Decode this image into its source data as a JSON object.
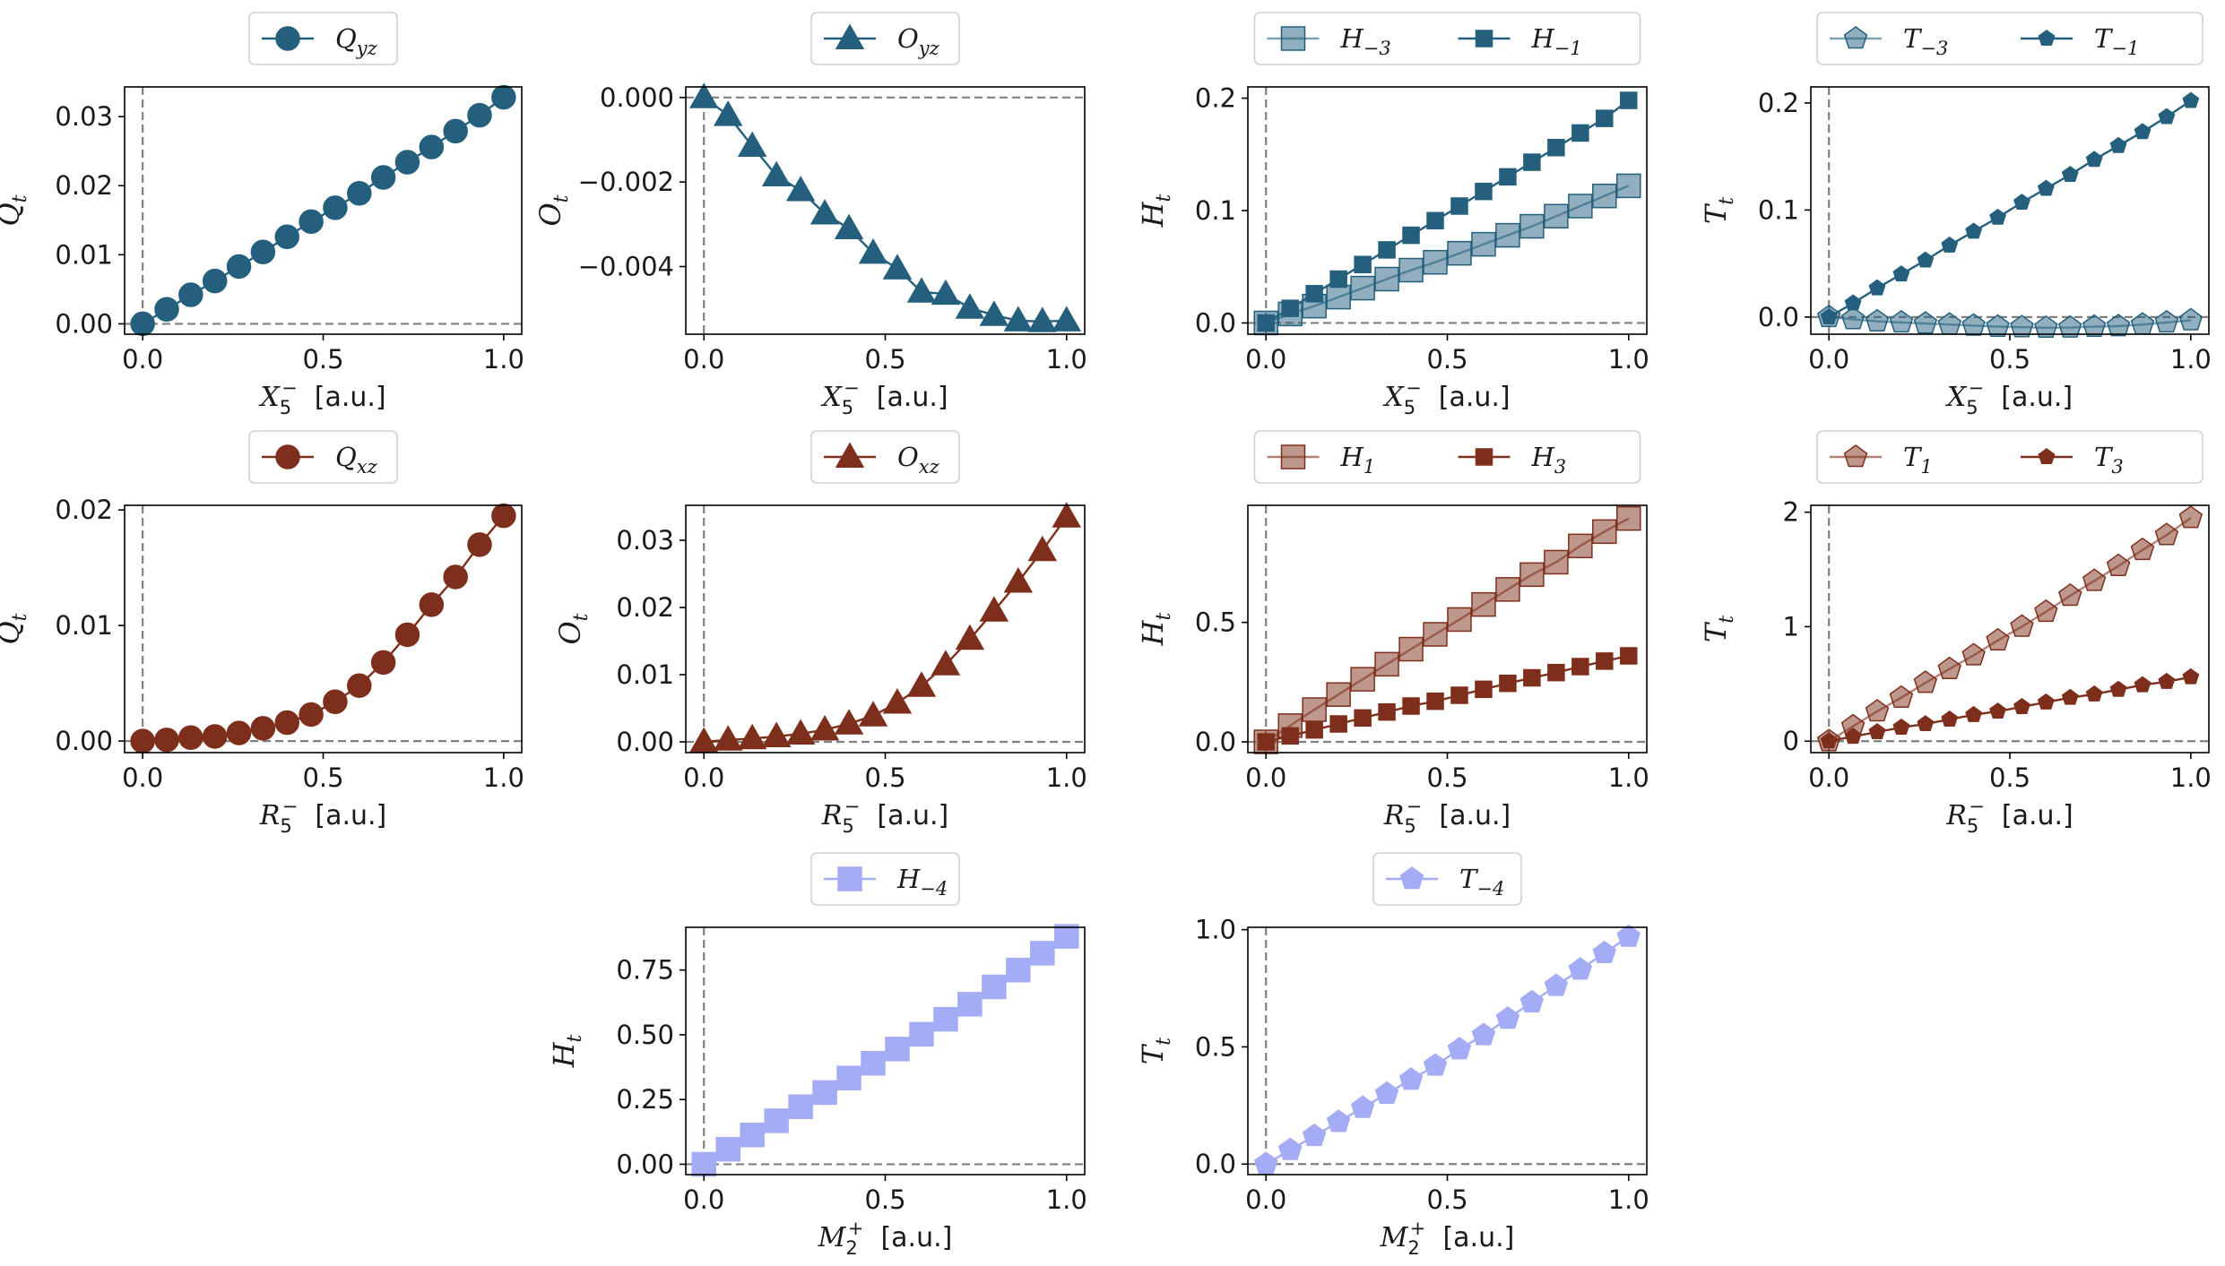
{
  "colors": {
    "blue": "#24607e",
    "lightblue": "#8badbd",
    "brown": "#7e2f1b",
    "lightbrown": "#b9877b",
    "periwinkle": "#a3acf4",
    "guide": "#808080"
  },
  "chart_data": [
    {
      "id": "p11",
      "type": "line",
      "xlabel_main": "X",
      "xlabel_sub": "5",
      "xlabel_sup": "−",
      "xlabel_unit": "[a.u.]",
      "ylabel_main": "Q",
      "ylabel_sub": "t",
      "xlim": [
        -0.05,
        1.05
      ],
      "ylim": [
        -0.0015,
        0.0343
      ],
      "xticks": [
        0.0,
        0.5,
        1.0
      ],
      "xticklabels": [
        "0.0",
        "0.5",
        "1.0"
      ],
      "yticks": [
        0.0,
        0.01,
        0.02,
        0.03
      ],
      "yticklabels": [
        "0.00",
        "0.01",
        "0.02",
        "0.03"
      ],
      "series": [
        {
          "name": "Q_yz",
          "legend_main": "Q",
          "legend_sub": "yz",
          "color": "#24607e",
          "marker": "circle",
          "size": 13,
          "alpha": 1,
          "x": [
            0,
            0.0667,
            0.1333,
            0.2,
            0.2667,
            0.3333,
            0.4,
            0.4667,
            0.5333,
            0.6,
            0.6667,
            0.7333,
            0.8,
            0.8667,
            0.9333,
            1.0
          ],
          "values": [
            0.0,
            0.0021,
            0.0042,
            0.0062,
            0.0083,
            0.0104,
            0.0126,
            0.0148,
            0.0168,
            0.0189,
            0.0212,
            0.0234,
            0.0256,
            0.0279,
            0.0302,
            0.0328
          ]
        }
      ]
    },
    {
      "id": "p12",
      "type": "line",
      "xlabel_main": "X",
      "xlabel_sub": "5",
      "xlabel_sup": "−",
      "xlabel_unit": "[a.u.]",
      "ylabel_main": "O",
      "ylabel_sub": "t",
      "xlim": [
        -0.05,
        1.05
      ],
      "ylim": [
        -0.0056,
        0.00025
      ],
      "xticks": [
        0.0,
        0.5,
        1.0
      ],
      "xticklabels": [
        "0.0",
        "0.5",
        "1.0"
      ],
      "yticks": [
        0.0,
        -0.002,
        -0.004
      ],
      "yticklabels": [
        "0.000",
        "−0.002",
        "−0.004"
      ],
      "series": [
        {
          "name": "O_yz",
          "legend_main": "O",
          "legend_sub": "yz",
          "color": "#24607e",
          "marker": "triangle",
          "size": 13,
          "alpha": 1,
          "x": [
            0,
            0.0667,
            0.1333,
            0.2,
            0.2667,
            0.3333,
            0.4,
            0.4667,
            0.5333,
            0.6,
            0.6667,
            0.7333,
            0.8,
            0.8667,
            0.9333,
            1.0
          ],
          "values": [
            0.0,
            -0.00042,
            -0.00115,
            -0.00185,
            -0.0022,
            -0.00275,
            -0.0031,
            -0.00368,
            -0.00405,
            -0.0046,
            -0.00465,
            -0.00498,
            -0.00515,
            -0.00528,
            -0.0053,
            -0.00528
          ]
        }
      ]
    },
    {
      "id": "p13",
      "type": "line",
      "xlabel_main": "X",
      "xlabel_sub": "5",
      "xlabel_sup": "−",
      "xlabel_unit": "[a.u.]",
      "ylabel_main": "H",
      "ylabel_sub": "t",
      "xlim": [
        -0.05,
        1.05
      ],
      "ylim": [
        -0.01,
        0.21
      ],
      "xticks": [
        0.0,
        0.5,
        1.0
      ],
      "xticklabels": [
        "0.0",
        "0.5",
        "1.0"
      ],
      "yticks": [
        0.0,
        0.1,
        0.2
      ],
      "yticklabels": [
        "0.0",
        "0.1",
        "0.2"
      ],
      "series": [
        {
          "name": "H_-3",
          "legend_main": "H",
          "legend_sub": "−3",
          "color": "#24607e",
          "marker": "square",
          "size": 13,
          "alpha": 0.5,
          "x": [
            0,
            0.0667,
            0.1333,
            0.2,
            0.2667,
            0.3333,
            0.4,
            0.4667,
            0.5333,
            0.6,
            0.6667,
            0.7333,
            0.8,
            0.8667,
            0.9333,
            1.0
          ],
          "values": [
            0.0,
            0.008,
            0.015,
            0.023,
            0.031,
            0.039,
            0.047,
            0.054,
            0.062,
            0.07,
            0.078,
            0.086,
            0.095,
            0.104,
            0.113,
            0.122
          ]
        },
        {
          "name": "H_-1",
          "legend_main": "H",
          "legend_sub": "−1",
          "color": "#24607e",
          "marker": "square",
          "size": 9,
          "alpha": 1,
          "x": [
            0,
            0.0667,
            0.1333,
            0.2,
            0.2667,
            0.3333,
            0.4,
            0.4667,
            0.5333,
            0.6,
            0.6667,
            0.7333,
            0.8,
            0.8667,
            0.9333,
            1.0
          ],
          "values": [
            0.0,
            0.013,
            0.026,
            0.039,
            0.052,
            0.065,
            0.078,
            0.091,
            0.104,
            0.117,
            0.13,
            0.143,
            0.156,
            0.169,
            0.182,
            0.198
          ]
        }
      ]
    },
    {
      "id": "p14",
      "type": "line",
      "xlabel_main": "X",
      "xlabel_sub": "5",
      "xlabel_sup": "−",
      "xlabel_unit": "[a.u.]",
      "ylabel_main": "T",
      "ylabel_sub": "t",
      "xlim": [
        -0.05,
        1.05
      ],
      "ylim": [
        -0.016,
        0.215
      ],
      "xticks": [
        0.0,
        0.5,
        1.0
      ],
      "xticklabels": [
        "0.0",
        "0.5",
        "1.0"
      ],
      "yticks": [
        0.0,
        0.1,
        0.2
      ],
      "yticklabels": [
        "0.0",
        "0.1",
        "0.2"
      ],
      "series": [
        {
          "name": "T_-3",
          "legend_main": "T",
          "legend_sub": "−3",
          "color": "#24607e",
          "marker": "pentagon",
          "size": 13,
          "alpha": 0.5,
          "x": [
            0,
            0.0667,
            0.1333,
            0.2,
            0.2667,
            0.3333,
            0.4,
            0.4667,
            0.5333,
            0.6,
            0.6667,
            0.7333,
            0.8,
            0.8667,
            0.9333,
            1.0
          ],
          "values": [
            0.0,
            -0.002,
            -0.004,
            -0.005,
            -0.006,
            -0.007,
            -0.008,
            -0.009,
            -0.0095,
            -0.01,
            -0.0098,
            -0.009,
            -0.0085,
            -0.007,
            -0.005,
            -0.003
          ]
        },
        {
          "name": "T_-1",
          "legend_main": "T",
          "legend_sub": "−1",
          "color": "#24607e",
          "marker": "pentagon",
          "size": 9,
          "alpha": 1,
          "x": [
            0,
            0.0667,
            0.1333,
            0.2,
            0.2667,
            0.3333,
            0.4,
            0.4667,
            0.5333,
            0.6,
            0.6667,
            0.7333,
            0.8,
            0.8667,
            0.9333,
            1.0
          ],
          "values": [
            0.0,
            0.013,
            0.027,
            0.04,
            0.053,
            0.067,
            0.08,
            0.093,
            0.107,
            0.12,
            0.133,
            0.147,
            0.16,
            0.173,
            0.187,
            0.202
          ]
        }
      ]
    },
    {
      "id": "p21",
      "type": "line",
      "xlabel_main": "R",
      "xlabel_sub": "5",
      "xlabel_sup": "−",
      "xlabel_unit": "[a.u.]",
      "ylabel_main": "Q",
      "ylabel_sub": "t",
      "xlim": [
        -0.05,
        1.05
      ],
      "ylim": [
        -0.001,
        0.0204
      ],
      "xticks": [
        0.0,
        0.5,
        1.0
      ],
      "xticklabels": [
        "0.0",
        "0.5",
        "1.0"
      ],
      "yticks": [
        0.0,
        0.01,
        0.02
      ],
      "yticklabels": [
        "0.00",
        "0.01",
        "0.02"
      ],
      "series": [
        {
          "name": "Q_xz",
          "legend_main": "Q",
          "legend_sub": "xz",
          "color": "#7e2f1b",
          "marker": "circle",
          "size": 13,
          "alpha": 1,
          "x": [
            0,
            0.0667,
            0.1333,
            0.2,
            0.2667,
            0.3333,
            0.4,
            0.4667,
            0.5333,
            0.6,
            0.6667,
            0.7333,
            0.8,
            0.8667,
            0.9333,
            1.0
          ],
          "values": [
            0.0,
            0.0001,
            0.0003,
            0.0004,
            0.0007,
            0.0011,
            0.0016,
            0.0023,
            0.0034,
            0.0048,
            0.0068,
            0.0092,
            0.0118,
            0.0142,
            0.017,
            0.0195
          ]
        }
      ]
    },
    {
      "id": "p22",
      "type": "line",
      "xlabel_main": "R",
      "xlabel_sub": "5",
      "xlabel_sup": "−",
      "xlabel_unit": "[a.u.]",
      "ylabel_main": "O",
      "ylabel_sub": "t",
      "xlim": [
        -0.05,
        1.05
      ],
      "ylim": [
        -0.0016,
        0.0352
      ],
      "xticks": [
        0.0,
        0.5,
        1.0
      ],
      "xticklabels": [
        "0.0",
        "0.5",
        "1.0"
      ],
      "yticks": [
        0.0,
        0.01,
        0.02,
        0.03
      ],
      "yticklabels": [
        "0.00",
        "0.01",
        "0.02",
        "0.03"
      ],
      "series": [
        {
          "name": "O_xz",
          "legend_main": "O",
          "legend_sub": "xz",
          "color": "#7e2f1b",
          "marker": "triangle",
          "size": 13,
          "alpha": 1,
          "x": [
            0,
            0.0667,
            0.1333,
            0.2,
            0.2667,
            0.3333,
            0.4,
            0.4667,
            0.5333,
            0.6,
            0.6667,
            0.7333,
            0.8,
            0.8667,
            0.9333,
            1.0
          ],
          "values": [
            0.0,
            0.0003,
            0.0005,
            0.0008,
            0.0012,
            0.0018,
            0.0027,
            0.0039,
            0.0058,
            0.0083,
            0.0115,
            0.0153,
            0.0195,
            0.0238,
            0.0285,
            0.0335
          ]
        }
      ]
    },
    {
      "id": "p23",
      "type": "line",
      "xlabel_main": "R",
      "xlabel_sub": "5",
      "xlabel_sup": "−",
      "xlabel_unit": "[a.u.]",
      "ylabel_main": "H",
      "ylabel_sub": "t",
      "xlim": [
        -0.05,
        1.05
      ],
      "ylim": [
        -0.045,
        0.99
      ],
      "xticks": [
        0.0,
        0.5,
        1.0
      ],
      "xticklabels": [
        "0.0",
        "0.5",
        "1.0"
      ],
      "yticks": [
        0.0,
        0.5
      ],
      "yticklabels": [
        "0.0",
        "0.5"
      ],
      "series": [
        {
          "name": "H_1",
          "legend_main": "H",
          "legend_sub": "1",
          "color": "#7e2f1b",
          "marker": "square",
          "size": 13,
          "alpha": 0.5,
          "x": [
            0,
            0.0667,
            0.1333,
            0.2,
            0.2667,
            0.3333,
            0.4,
            0.4667,
            0.5333,
            0.6,
            0.6667,
            0.7333,
            0.8,
            0.8667,
            0.9333,
            1.0
          ],
          "values": [
            0.0,
            0.068,
            0.135,
            0.198,
            0.262,
            0.325,
            0.388,
            0.45,
            0.512,
            0.575,
            0.638,
            0.7,
            0.752,
            0.82,
            0.88,
            0.935
          ]
        },
        {
          "name": "H_3",
          "legend_main": "H",
          "legend_sub": "3",
          "color": "#7e2f1b",
          "marker": "square",
          "size": 9,
          "alpha": 1,
          "x": [
            0,
            0.0667,
            0.1333,
            0.2,
            0.2667,
            0.3333,
            0.4,
            0.4667,
            0.5333,
            0.6,
            0.6667,
            0.7333,
            0.8,
            0.8667,
            0.9333,
            1.0
          ],
          "values": [
            0.0,
            0.025,
            0.05,
            0.075,
            0.1,
            0.125,
            0.15,
            0.17,
            0.195,
            0.22,
            0.245,
            0.268,
            0.29,
            0.315,
            0.338,
            0.36
          ]
        }
      ]
    },
    {
      "id": "p24",
      "type": "line",
      "xlabel_main": "R",
      "xlabel_sub": "5",
      "xlabel_sup": "−",
      "xlabel_unit": "[a.u.]",
      "ylabel_main": "T",
      "ylabel_sub": "t",
      "xlim": [
        -0.05,
        1.05
      ],
      "ylim": [
        -0.1,
        2.06
      ],
      "xticks": [
        0.0,
        0.5,
        1.0
      ],
      "xticklabels": [
        "0.0",
        "0.5",
        "1.0"
      ],
      "yticks": [
        0,
        1,
        2
      ],
      "yticklabels": [
        "0",
        "1",
        "2"
      ],
      "series": [
        {
          "name": "T_1",
          "legend_main": "T",
          "legend_sub": "1",
          "color": "#7e2f1b",
          "marker": "pentagon",
          "size": 13,
          "alpha": 0.5,
          "x": [
            0,
            0.0667,
            0.1333,
            0.2,
            0.2667,
            0.3333,
            0.4,
            0.4667,
            0.5333,
            0.6,
            0.6667,
            0.7333,
            0.8,
            0.8667,
            0.9333,
            1.0
          ],
          "values": [
            0.0,
            0.13,
            0.26,
            0.38,
            0.51,
            0.63,
            0.75,
            0.88,
            1.0,
            1.13,
            1.27,
            1.4,
            1.53,
            1.67,
            1.8,
            1.95
          ]
        },
        {
          "name": "T_3",
          "legend_main": "T",
          "legend_sub": "3",
          "color": "#7e2f1b",
          "marker": "pentagon",
          "size": 9,
          "alpha": 1,
          "x": [
            0,
            0.0667,
            0.1333,
            0.2,
            0.2667,
            0.3333,
            0.4,
            0.4667,
            0.5333,
            0.6,
            0.6667,
            0.7333,
            0.8,
            0.8667,
            0.9333,
            1.0
          ],
          "values": [
            0.0,
            0.04,
            0.08,
            0.12,
            0.15,
            0.19,
            0.23,
            0.26,
            0.3,
            0.34,
            0.38,
            0.41,
            0.45,
            0.49,
            0.52,
            0.56
          ]
        }
      ]
    },
    {
      "id": "p32",
      "type": "line",
      "xlabel_main": "M",
      "xlabel_sub": "2",
      "xlabel_sup": "+",
      "xlabel_unit": "[a.u.]",
      "ylabel_main": "H",
      "ylabel_sub": "t",
      "xlim": [
        -0.05,
        1.05
      ],
      "ylim": [
        -0.04,
        0.915
      ],
      "xticks": [
        0.0,
        0.5,
        1.0
      ],
      "xticklabels": [
        "0.0",
        "0.5",
        "1.0"
      ],
      "yticks": [
        0.0,
        0.25,
        0.5,
        0.75
      ],
      "yticklabels": [
        "0.00",
        "0.25",
        "0.50",
        "0.75"
      ],
      "series": [
        {
          "name": "H_-4",
          "legend_main": "H",
          "legend_sub": "−4",
          "color": "#a3acf4",
          "marker": "square",
          "size": 13,
          "alpha": 1,
          "x": [
            0,
            0.0667,
            0.1333,
            0.2,
            0.2667,
            0.3333,
            0.4,
            0.4667,
            0.5333,
            0.6,
            0.6667,
            0.7333,
            0.8,
            0.8667,
            0.9333,
            1.0
          ],
          "values": [
            0.0,
            0.058,
            0.113,
            0.168,
            0.222,
            0.277,
            0.333,
            0.39,
            0.445,
            0.502,
            0.56,
            0.618,
            0.685,
            0.75,
            0.815,
            0.88
          ]
        }
      ]
    },
    {
      "id": "p33",
      "type": "line",
      "xlabel_main": "M",
      "xlabel_sub": "2",
      "xlabel_sup": "+",
      "xlabel_unit": "[a.u.]",
      "ylabel_main": "T",
      "ylabel_sub": "t",
      "xlim": [
        -0.05,
        1.05
      ],
      "ylim": [
        -0.045,
        1.01
      ],
      "xticks": [
        0.0,
        0.5,
        1.0
      ],
      "xticklabels": [
        "0.0",
        "0.5",
        "1.0"
      ],
      "yticks": [
        0.0,
        0.5,
        1.0
      ],
      "yticklabels": [
        "0.0",
        "0.5",
        "1.0"
      ],
      "series": [
        {
          "name": "T_-4",
          "legend_main": "T",
          "legend_sub": "−4",
          "color": "#a3acf4",
          "marker": "pentagon",
          "size": 13,
          "alpha": 1,
          "x": [
            0,
            0.0667,
            0.1333,
            0.2,
            0.2667,
            0.3333,
            0.4,
            0.4667,
            0.5333,
            0.6,
            0.6667,
            0.7333,
            0.8,
            0.8667,
            0.9333,
            1.0
          ],
          "values": [
            0.0,
            0.06,
            0.12,
            0.18,
            0.24,
            0.3,
            0.36,
            0.42,
            0.49,
            0.55,
            0.62,
            0.69,
            0.76,
            0.83,
            0.9,
            0.97
          ]
        }
      ]
    }
  ]
}
